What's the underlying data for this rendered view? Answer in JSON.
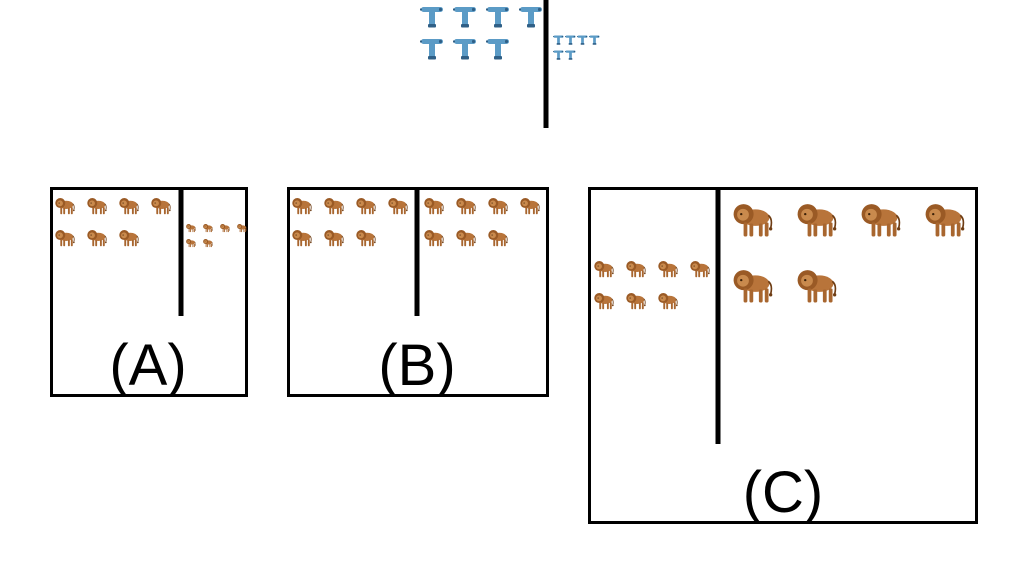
{
  "colors": {
    "background": "#ffffff",
    "frame": "#000000",
    "divider": "#000000",
    "drill_body": "#5b9bc6",
    "drill_dark": "#2f5f86",
    "lion_body": "#b8743a",
    "lion_mane": "#9a5a25",
    "lion_dark": "#6e3d14"
  },
  "top_example": {
    "object_icon": "drill-icon",
    "left_count": 7,
    "right_count": 6
  },
  "options": [
    {
      "id": "A",
      "label": "(A)",
      "object_icon": "lion-icon",
      "left_count": 7,
      "right_count": 6
    },
    {
      "id": "B",
      "label": "(B)",
      "object_icon": "lion-icon",
      "left_count": 7,
      "right_count": 7
    },
    {
      "id": "C",
      "label": "(C)",
      "object_icon": "lion-icon",
      "left_count": 7,
      "right_count": 6
    }
  ]
}
